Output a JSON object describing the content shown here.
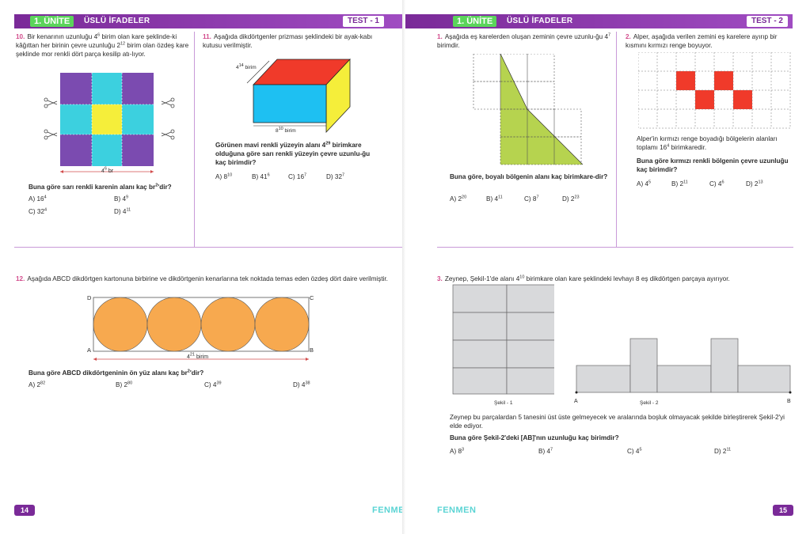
{
  "left": {
    "unit_pill": "1. ÜNİTE",
    "unit_title": "ÜSLÜ İFADELER",
    "test_tag": "TEST - 1",
    "page_number": "14",
    "brand": "FENMEN",
    "q10": {
      "number": "10.",
      "text_html": "Bir kenarının uzunluğu 4<sup>6</sup> birim olan kare şeklinde-ki kâğıttan her birinin çevre uzunluğu 2<sup>12</sup> birim olan özdeş kare şeklinde mor renkli dört parça kesilip atı-lıyor.",
      "dim_label_html": "4<sup>6</sup> br",
      "question_html": "Buna göre sarı renkli karenin alanı kaç br<sup>2</sup>'dir?",
      "options": [
        "A) 16<sup>4</sup>",
        "B) 4<sup>9</sup>",
        "C) 32<sup>4</sup>",
        "D) 4<sup>11</sup>"
      ]
    },
    "q11": {
      "number": "11.",
      "text": "Aşağıda dikdörtgenler prizması şeklindeki bir ayak-kabı kutusu verilmiştir.",
      "label_top_html": "4<sup>14</sup> birim",
      "label_bottom_html": "8<sup>10</sup> birim",
      "question_html": "Görünen mavi renkli yüzeyin alanı 4<sup>29</sup> birimkare olduğuna göre sarı renkli yüzeyin çevre uzunlu-ğu kaç birimdir?",
      "options": [
        "A) 8<sup>10</sup>",
        "B) 41<sup>6</sup>",
        "C) 16<sup>7</sup>",
        "D) 32<sup>7</sup>"
      ]
    },
    "q12": {
      "number": "12.",
      "text": "Aşağıda ABCD dikdörtgen kartonuna birbirine ve dikdörtgenin kenarlarına tek noktada temas eden özdeş dört daire verilmiştir.",
      "corners": [
        "D",
        "C",
        "A",
        "B"
      ],
      "dim_label_html": "4<sup>21</sup> birim",
      "question_html": "Buna göre ABCD dikdörtgeninin ön yüz alanı kaç br<sup>2</sup>'dir?",
      "options": [
        "A) 2<sup>82</sup>",
        "B) 2<sup>80</sup>",
        "C) 4<sup>39</sup>",
        "D) 4<sup>38</sup>"
      ]
    }
  },
  "right": {
    "unit_pill": "1. ÜNİTE",
    "unit_title": "ÜSLÜ İFADELER",
    "test_tag": "TEST - 2",
    "page_number": "15",
    "brand": "FENMEN",
    "q1": {
      "number": "1.",
      "text_html": "Aşağıda eş karelerden oluşan zeminin çevre uzunlu-ğu 4<sup>7</sup> birimdir.",
      "question_html": "Buna göre, boyalı bölgenin alanı kaç birimkare-dir?",
      "options": [
        "A) 2<sup>20</sup>",
        "B) 4<sup>11</sup>",
        "C) 8<sup>7</sup>",
        "D) 2<sup>23</sup>"
      ]
    },
    "q2": {
      "number": "2.",
      "text": "Alper, aşağıda verilen zemini eş karelere ayırıp bir kısmını kırmızı renge boyuyor.",
      "info_html": "Alper'in kırmızı renge boyadığı bölgelerin alanları toplamı 16<sup>4</sup> birimkaredir.",
      "question": "Buna göre kırmızı renkli bölgenin çevre uzunluğu kaç birimdir?",
      "options": [
        "A) 4<sup>5</sup>",
        "B) 2<sup>11</sup>",
        "C) 4<sup>6</sup>",
        "D) 2<sup>13</sup>"
      ]
    },
    "q3": {
      "number": "3.",
      "text_html": "Zeynep, Şekil-1'de alanı 4<sup>10</sup> birimkare olan kare şeklindeki levhayı 8 eş dikdörtgen parçaya ayırıyor.",
      "fig1_label": "Şekil - 1",
      "fig2_label": "Şekil - 2",
      "point_a": "A",
      "point_b": "B",
      "text2": "Zeynep bu parçalardan 5 tanesini üst üste gelmeyecek ve aralarında boşluk olmayacak şekilde birleştirerek Şekil-2'yi elde ediyor.",
      "question": "Buna göre Şekil-2'deki [AB]'nın uzunluğu kaç birimdir?",
      "options": [
        "A) 8<sup>3</sup>",
        "B) 4<sup>7</sup>",
        "C) 4<sup>5</sup>",
        "D) 2<sup>11</sup>"
      ]
    }
  },
  "colors": {
    "header_purple": "#7a2a98",
    "pill_green": "#5bd45b",
    "question_number": "#d24b8c",
    "square_purple": "#7b4bb0",
    "square_cyan": "#3cd0df",
    "square_yellow": "#f5ee3a",
    "box_red": "#f03a2a",
    "box_blue": "#1ec0f2",
    "box_yellow": "#f5ee3a",
    "circle_orange": "#f7a94f",
    "shade_green": "#b6d34f",
    "grid_red": "#f03a2a",
    "plate_gray": "#d8d9db"
  }
}
